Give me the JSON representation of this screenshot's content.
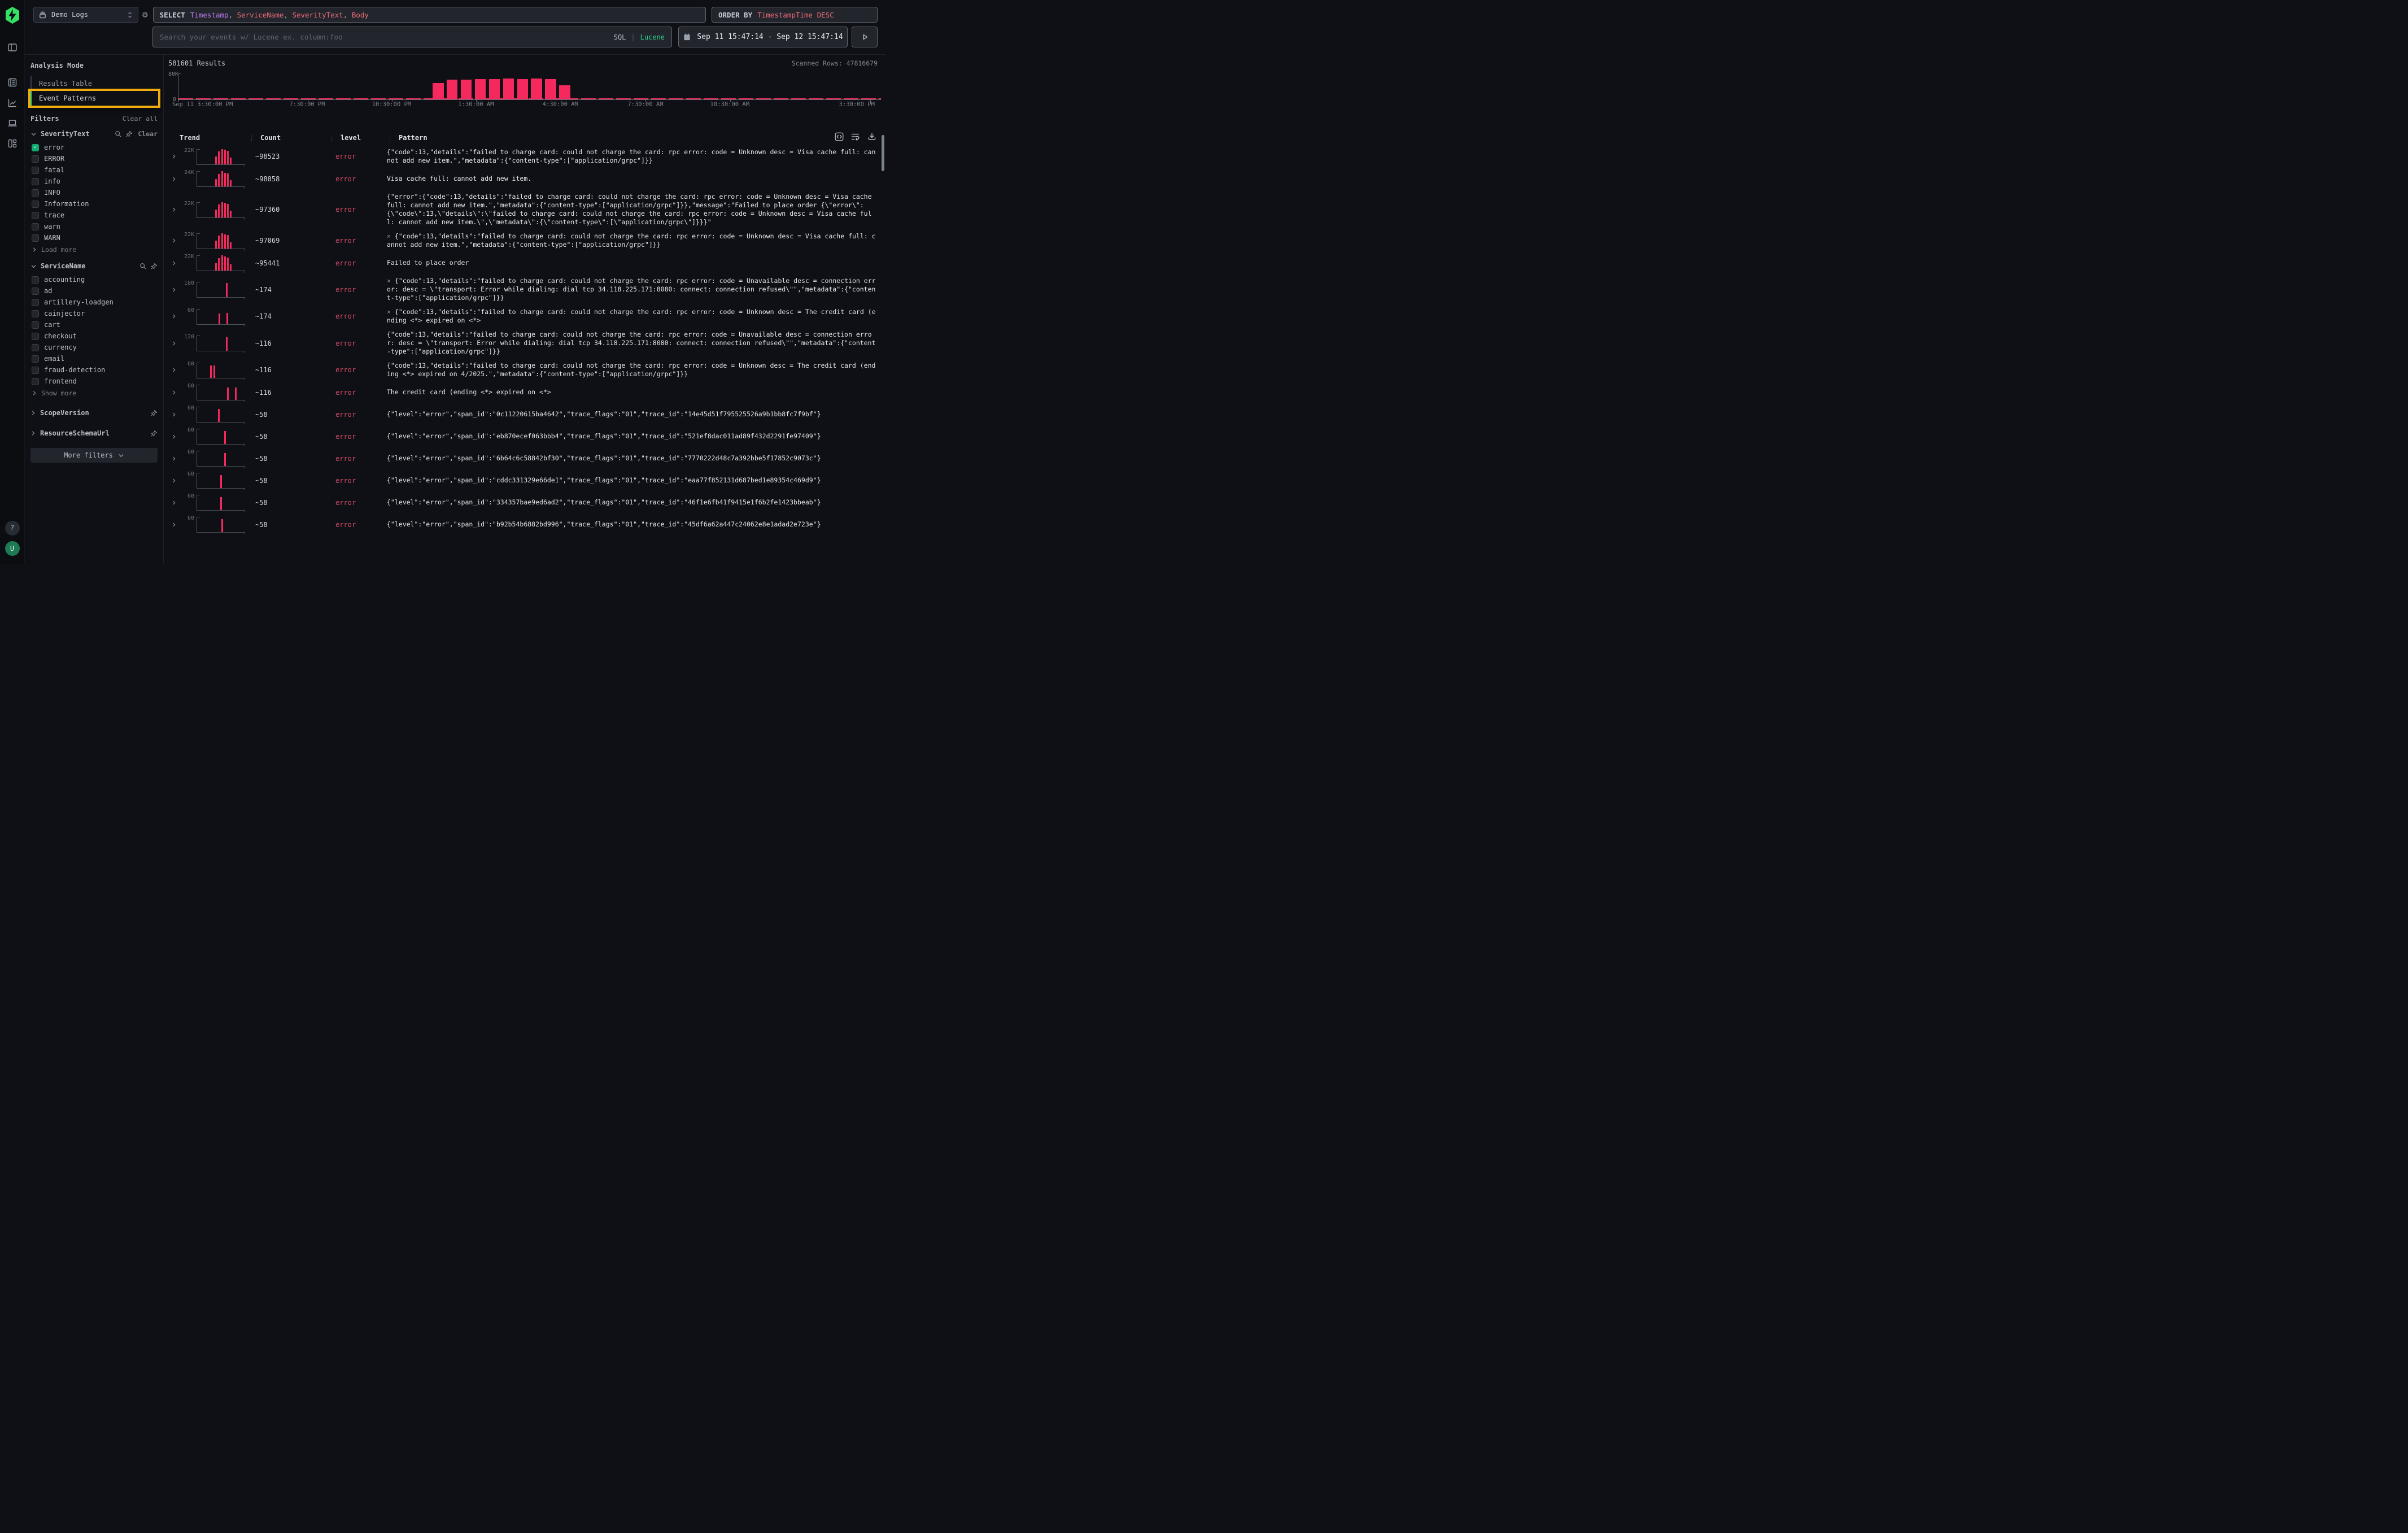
{
  "topbar": {
    "source_label": "Demo Logs",
    "select_keyword": "SELECT",
    "select_columns": [
      {
        "text": "Timestamp",
        "color": "#bc7bf0"
      },
      {
        "text": "ServiceName",
        "color": "#ee6c7c"
      },
      {
        "text": "SeverityText",
        "color": "#ee6c7c"
      },
      {
        "text": "Body",
        "color": "#ee6c7c"
      }
    ],
    "orderby_keyword": "ORDER BY",
    "orderby_value": "TimestampTime DESC",
    "search_placeholder": "Search your events w/ Lucene ex. column:foo",
    "lang_sql": "SQL",
    "lang_divider": "|",
    "lang_lucene": "Lucene",
    "date_range": "Sep 11 15:47:14 - Sep 12 15:47:14"
  },
  "rail": {
    "icons": [
      "logo",
      "panel-left",
      "logs",
      "chart-line",
      "laptop",
      "layout-dashboard"
    ],
    "help_glyph": "?",
    "avatar_initial": "U"
  },
  "filters_panel": {
    "analysis_mode_label": "Analysis Mode",
    "modes": [
      {
        "label": "Results Table",
        "active": false,
        "highlighted": false
      },
      {
        "label": "Event Patterns",
        "active": true,
        "highlighted": true
      }
    ],
    "filters_label": "Filters",
    "clear_all_label": "Clear all",
    "highlight_color": "#f0ab0f",
    "groups": [
      {
        "name": "SeverityText",
        "expanded": true,
        "icons": [
          "search",
          "pin"
        ],
        "clear_label": "Clear",
        "options": [
          {
            "label": "error",
            "checked": true
          },
          {
            "label": "ERROR",
            "checked": false
          },
          {
            "label": "fatal",
            "checked": false
          },
          {
            "label": "info",
            "checked": false
          },
          {
            "label": "INFO",
            "checked": false
          },
          {
            "label": "Information",
            "checked": false
          },
          {
            "label": "trace",
            "checked": false
          },
          {
            "label": "warn",
            "checked": false
          },
          {
            "label": "WARN",
            "checked": false
          }
        ],
        "more_label": "Load more"
      },
      {
        "name": "ServiceName",
        "expanded": true,
        "icons": [
          "search",
          "pin"
        ],
        "options": [
          {
            "label": "accounting",
            "checked": false
          },
          {
            "label": "ad",
            "checked": false
          },
          {
            "label": "artillery-loadgen",
            "checked": false
          },
          {
            "label": "cainjector",
            "checked": false
          },
          {
            "label": "cart",
            "checked": false
          },
          {
            "label": "checkout",
            "checked": false
          },
          {
            "label": "currency",
            "checked": false
          },
          {
            "label": "email",
            "checked": false
          },
          {
            "label": "fraud-detection",
            "checked": false
          },
          {
            "label": "frontend",
            "checked": false
          }
        ],
        "more_label": "Show more"
      },
      {
        "name": "ScopeVersion",
        "expanded": false,
        "icons": [
          "pin"
        ]
      },
      {
        "name": "ResourceSchemaUrl",
        "expanded": false,
        "icons": [
          "pin"
        ]
      }
    ],
    "more_filters_label": "More filters"
  },
  "results": {
    "count_label": "581601 Results",
    "scanned_label": "Scanned Rows: 47816679"
  },
  "chart_data": {
    "type": "bar",
    "title": "581601 Results",
    "ylabel": "",
    "xlabel": "",
    "ylim": [
      0,
      80000
    ],
    "y_tick_labels": [
      "80K",
      "0"
    ],
    "bar_color": "#f5295e",
    "x_tick_labels": [
      {
        "label": "Sep 11 3:30:00 PM",
        "pos": 0.0
      },
      {
        "label": "7:30:00 PM",
        "pos": 0.184
      },
      {
        "label": "10:30:00 PM",
        "pos": 0.304
      },
      {
        "label": "1:30:00 AM",
        "pos": 0.424
      },
      {
        "label": "4:30:00 AM",
        "pos": 0.544
      },
      {
        "label": "7:30:00 AM",
        "pos": 0.665
      },
      {
        "label": "10:30:00 AM",
        "pos": 0.785
      },
      {
        "label": "3:30:00 PM",
        "pos": 0.985
      }
    ],
    "bars": [
      {
        "pos": 0.362,
        "value": 49000
      },
      {
        "pos": 0.382,
        "value": 60000
      },
      {
        "pos": 0.402,
        "value": 60000
      },
      {
        "pos": 0.422,
        "value": 62000
      },
      {
        "pos": 0.442,
        "value": 62000
      },
      {
        "pos": 0.462,
        "value": 63000
      },
      {
        "pos": 0.482,
        "value": 62000
      },
      {
        "pos": 0.502,
        "value": 63000
      },
      {
        "pos": 0.522,
        "value": 62000
      },
      {
        "pos": 0.542,
        "value": 42000
      }
    ],
    "baseline_note": "thin low-volume (~1K) bar segments run along the 0 line across the full time range"
  },
  "table": {
    "columns": [
      "Trend",
      "Count",
      "level",
      "Pattern"
    ],
    "toolbar_icons": [
      "code-brackets",
      "wrap-lines",
      "download"
    ],
    "rows": [
      {
        "trend_label": "22K",
        "trend_bars": [
          [
            0.38,
            0.5
          ],
          [
            0.44,
            0.82
          ],
          [
            0.5,
            1
          ],
          [
            0.56,
            0.94
          ],
          [
            0.62,
            0.88
          ],
          [
            0.68,
            0.42
          ]
        ],
        "count": "~98523",
        "level": "error",
        "prefix": "",
        "pattern": "{\"code\":13,\"details\":\"failed to charge card: could not charge the card: rpc error: code = Unknown desc = Visa cache full: cannot add new item.\",\"metadata\":{\"content-type\":[\"application/grpc\"]}}"
      },
      {
        "trend_label": "24K",
        "trend_bars": [
          [
            0.38,
            0.48
          ],
          [
            0.44,
            0.8
          ],
          [
            0.5,
            1
          ],
          [
            0.56,
            0.9
          ],
          [
            0.62,
            0.85
          ],
          [
            0.68,
            0.4
          ]
        ],
        "count": "~98058",
        "level": "error",
        "prefix": "",
        "pattern": "Visa cache full: cannot add new item."
      },
      {
        "trend_label": "22K",
        "trend_bars": [
          [
            0.38,
            0.5
          ],
          [
            0.44,
            0.84
          ],
          [
            0.5,
            1
          ],
          [
            0.56,
            0.93
          ],
          [
            0.62,
            0.87
          ],
          [
            0.68,
            0.41
          ]
        ],
        "count": "~97360",
        "level": "error",
        "prefix": "",
        "pattern": "{\"error\":{\"code\":13,\"details\":\"failed to charge card: could not charge the card: rpc error: code = Unknown desc = Visa cache full: cannot add new item.\",\"metadata\":{\"content-type\":[\"application/grpc\"]}},\"message\":\"Failed to place order {\\\"error\\\":{\\\"code\\\":13,\\\"details\\\":\\\"failed to charge card: could not charge the card: rpc error: code = Unknown desc = Visa cache full: cannot add new item.\\\",\\\"metadata\\\":{\\\"content-type\\\":[\\\"application/grpc\\\"]}}}\""
      },
      {
        "trend_label": "22K",
        "trend_bars": [
          [
            0.38,
            0.49
          ],
          [
            0.44,
            0.83
          ],
          [
            0.5,
            1
          ],
          [
            0.56,
            0.92
          ],
          [
            0.62,
            0.86
          ],
          [
            0.68,
            0.4
          ]
        ],
        "count": "~97069",
        "level": "error",
        "prefix": "×",
        "pattern": "{\"code\":13,\"details\":\"failed to charge card: could not charge the card: rpc error: code = Unknown desc = Visa cache full: cannot add new item.\",\"metadata\":{\"content-type\":[\"application/grpc\"]}}"
      },
      {
        "trend_label": "22K",
        "trend_bars": [
          [
            0.38,
            0.5
          ],
          [
            0.44,
            0.82
          ],
          [
            0.5,
            1
          ],
          [
            0.56,
            0.93
          ],
          [
            0.62,
            0.86
          ],
          [
            0.68,
            0.41
          ]
        ],
        "count": "~95441",
        "level": "error",
        "prefix": "",
        "pattern": "Failed to place order"
      },
      {
        "trend_label": "180",
        "trend_bars": [
          [
            0.6,
            0.92
          ]
        ],
        "count": "~174",
        "level": "error",
        "prefix": "×",
        "pattern": "{\"code\":13,\"details\":\"failed to charge card: could not charge the card: rpc error: code = Unavailable desc = connection error: desc = \\\"transport: Error while dialing: dial tcp 34.118.225.171:8080: connect: connection refused\\\"\",\"metadata\":{\"content-type\":[\"application/grpc\"]}}"
      },
      {
        "trend_label": "60",
        "trend_bars": [
          [
            0.45,
            0.68
          ],
          [
            0.61,
            0.72
          ]
        ],
        "count": "~174",
        "level": "error",
        "prefix": "×",
        "pattern": "{\"code\":13,\"details\":\"failed to charge card: could not charge the card: rpc error: code = Unknown desc = The credit card (ending <*> expired on <*>"
      },
      {
        "trend_label": "120",
        "trend_bars": [
          [
            0.6,
            0.88
          ]
        ],
        "count": "~116",
        "level": "error",
        "prefix": "",
        "pattern": "{\"code\":13,\"details\":\"failed to charge card: could not charge the card: rpc error: code = Unavailable desc = connection error: desc = \\\"transport: Error while dialing: dial tcp 34.118.225.171:8080: connect: connection refused\\\"\",\"metadata\":{\"content-type\":[\"application/grpc\"]}}"
      },
      {
        "trend_label": "60",
        "trend_bars": [
          [
            0.27,
            0.8
          ],
          [
            0.34,
            0.8
          ]
        ],
        "count": "~116",
        "level": "error",
        "prefix": "",
        "pattern": "{\"code\":13,\"details\":\"failed to charge card: could not charge the card: rpc error: code = Unknown desc = The credit card (ending <*> expired on 4/2025.\",\"metadata\":{\"content-type\":[\"application/grpc\"]}}"
      },
      {
        "trend_label": "60",
        "trend_bars": [
          [
            0.62,
            0.8
          ],
          [
            0.79,
            0.8
          ]
        ],
        "count": "~116",
        "level": "error",
        "prefix": "",
        "pattern": "The credit card (ending <*> expired on <*>"
      },
      {
        "trend_label": "60",
        "trend_bars": [
          [
            0.44,
            0.85
          ]
        ],
        "count": "~58",
        "level": "error",
        "prefix": "",
        "pattern": "{\"level\":\"error\",\"span_id\":\"0c11220615ba4642\",\"trace_flags\":\"01\",\"trace_id\":\"14e45d51f795525526a9b1bb8fc7f9bf\"}"
      },
      {
        "trend_label": "60",
        "trend_bars": [
          [
            0.56,
            0.85
          ]
        ],
        "count": "~58",
        "level": "error",
        "prefix": "",
        "pattern": "{\"level\":\"error\",\"span_id\":\"eb870ecef063bbb4\",\"trace_flags\":\"01\",\"trace_id\":\"521ef8dac011ad89f432d2291fe97409\"}"
      },
      {
        "trend_label": "60",
        "trend_bars": [
          [
            0.56,
            0.85
          ]
        ],
        "count": "~58",
        "level": "error",
        "prefix": "",
        "pattern": "{\"level\":\"error\",\"span_id\":\"6b64c6c58842bf30\",\"trace_flags\":\"01\",\"trace_id\":\"7770222d48c7a392bbe5f17852c9073c\"}"
      },
      {
        "trend_label": "60",
        "trend_bars": [
          [
            0.48,
            0.85
          ]
        ],
        "count": "~58",
        "level": "error",
        "prefix": "",
        "pattern": "{\"level\":\"error\",\"span_id\":\"cddc331329e66de1\",\"trace_flags\":\"01\",\"trace_id\":\"eaa77f852131d687bed1e89354c469d9\"}"
      },
      {
        "trend_label": "60",
        "trend_bars": [
          [
            0.48,
            0.85
          ]
        ],
        "count": "~58",
        "level": "error",
        "prefix": "",
        "pattern": "{\"level\":\"error\",\"span_id\":\"334357bae9ed6ad2\",\"trace_flags\":\"01\",\"trace_id\":\"46f1e6fb41f9415e1f6b2fe1423bbeab\"}"
      },
      {
        "trend_label": "60",
        "trend_bars": [
          [
            0.5,
            0.85
          ]
        ],
        "count": "~58",
        "level": "error",
        "prefix": "",
        "pattern": "{\"level\":\"error\",\"span_id\":\"b92b54b6882bd996\",\"trace_flags\":\"01\",\"trace_id\":\"45df6a62a447c24062e8e1adad2e723e\"}"
      }
    ]
  }
}
